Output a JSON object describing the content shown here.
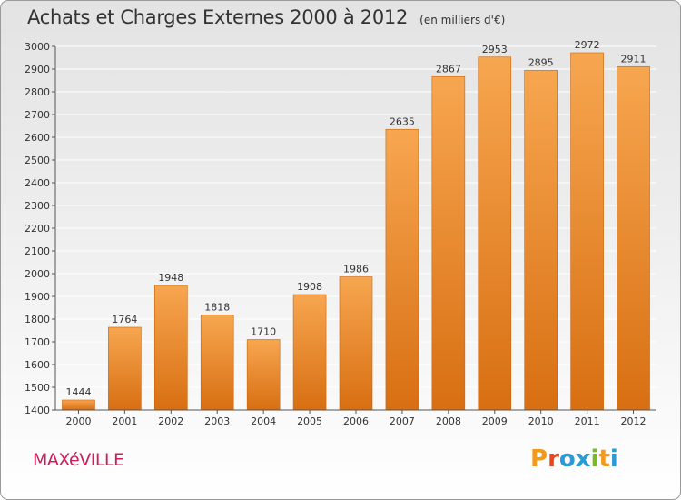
{
  "header": {
    "title": "Achats et Charges Externes 2000 à 2012",
    "unit": "(en milliers d'€)"
  },
  "footer": {
    "commune": "MAXéVILLE",
    "logo_letters": [
      "P",
      "r",
      "o",
      "x",
      "i",
      "t",
      "i"
    ],
    "logo_colors": [
      "#f39a1d",
      "#e8481f",
      "#2b9bd6",
      "#2b9bd6",
      "#7ab829",
      "#f39a1d",
      "#2b9bd6"
    ]
  },
  "colors": {
    "bar_light": "#f7a650",
    "bar_dark": "#d86f12",
    "bar_edge": "#c9650f",
    "grid": "#ffffff",
    "axis": "#555555"
  },
  "chart_data": {
    "type": "bar",
    "title": "Achats et Charges Externes 2000 à 2012",
    "subtitle": "(en milliers d'€)",
    "xlabel": "",
    "ylabel": "",
    "categories": [
      "2000",
      "2001",
      "2002",
      "2003",
      "2004",
      "2005",
      "2006",
      "2007",
      "2008",
      "2009",
      "2010",
      "2011",
      "2012"
    ],
    "values": [
      1444,
      1764,
      1948,
      1818,
      1710,
      1908,
      1986,
      2635,
      2867,
      2953,
      2895,
      2972,
      2911
    ],
    "value_labels": [
      "1444",
      "1764",
      "1948",
      "1818",
      "1710",
      "1908",
      "1986",
      "2635",
      "2867",
      "2953",
      "2895",
      "2972",
      "2911"
    ],
    "ylim": [
      1400,
      3000
    ],
    "yticks": [
      1400,
      1500,
      1600,
      1700,
      1800,
      1900,
      2000,
      2100,
      2200,
      2300,
      2400,
      2500,
      2600,
      2700,
      2800,
      2900,
      3000
    ],
    "grid": true,
    "legend": "none"
  }
}
